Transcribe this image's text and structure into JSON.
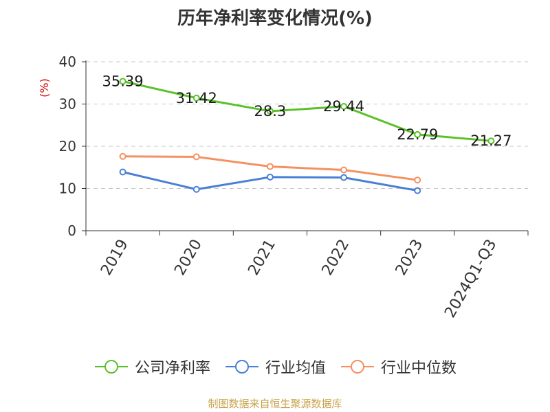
{
  "title": "历年净利率变化情况(%)",
  "source": "制图数据来自恒生聚源数据库",
  "chart_data": {
    "type": "line",
    "title": "历年净利率变化情况(%)",
    "ylabel": "(%)",
    "categories": [
      "2019",
      "2020",
      "2021",
      "2022",
      "2023",
      "2024Q1-Q3"
    ],
    "ylim": [
      0,
      40
    ],
    "yticks": [
      0,
      10,
      20,
      30,
      40
    ],
    "grid": true,
    "legend_position": "bottom",
    "series": [
      {
        "name": "公司净利率",
        "color": "#5ac229",
        "show_labels": true,
        "labels": [
          "35.39",
          "31.42",
          "28.3",
          "29.44",
          "22.79",
          "21.27"
        ],
        "values": [
          35.39,
          31.42,
          28.3,
          29.44,
          22.79,
          21.27
        ]
      },
      {
        "name": "行业均值",
        "color": "#4a7fd6",
        "show_labels": false,
        "values": [
          13.9,
          9.8,
          12.7,
          12.6,
          9.5,
          null
        ]
      },
      {
        "name": "行业中位数",
        "color": "#f59062",
        "show_labels": false,
        "values": [
          17.6,
          17.5,
          15.2,
          14.4,
          12.0,
          null
        ]
      }
    ]
  }
}
